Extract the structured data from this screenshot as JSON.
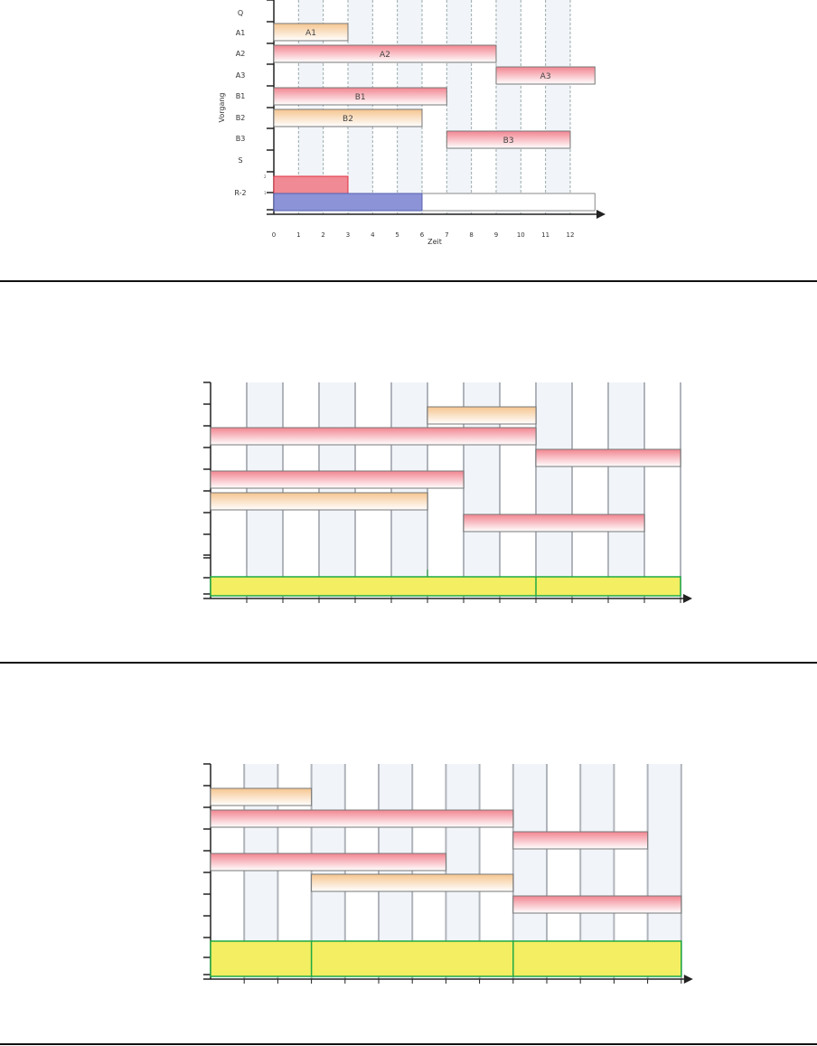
{
  "colors": {
    "orange": "#f5c58f",
    "red": "#f28590",
    "resource_red": "#f08a94",
    "resource_blue": "#8c93d6",
    "yellow": "#f3ee62",
    "green": "#1faa44",
    "band": "#f1f5f9"
  },
  "chart1": {
    "ylabel": "Vorgang",
    "xlabel": "Zeit",
    "row_labels": [
      "Q",
      "A1",
      "A2",
      "A3",
      "B1",
      "B2",
      "B3",
      "S",
      "R-2"
    ],
    "x_ticks": [
      "0",
      "1",
      "2",
      "3",
      "4",
      "5",
      "6",
      "7",
      "8",
      "9",
      "10",
      "11",
      "12"
    ],
    "resource_ticks": [
      "2",
      "1"
    ],
    "tasks": [
      {
        "label": "A1",
        "start": 0,
        "end": 3,
        "color": "orange"
      },
      {
        "label": "A2",
        "start": 0,
        "end": 9,
        "color": "red"
      },
      {
        "label": "A3",
        "start": 9,
        "end": 13,
        "color": "red"
      },
      {
        "label": "B1",
        "start": 0,
        "end": 7,
        "color": "red"
      },
      {
        "label": "B2",
        "start": 0,
        "end": 6,
        "color": "orange"
      },
      {
        "label": "B3",
        "start": 7,
        "end": 12,
        "color": "red"
      }
    ],
    "resource": {
      "capacity_end": 13,
      "usage": [
        {
          "start": 0,
          "end": 3,
          "level": 2
        },
        {
          "start": 0,
          "end": 6,
          "level": 1
        }
      ]
    }
  },
  "chart2": {
    "tasks": [
      {
        "start": 6,
        "end": 9,
        "color": "orange"
      },
      {
        "start": 0,
        "end": 9,
        "color": "red"
      },
      {
        "start": 9,
        "end": 13,
        "color": "red"
      },
      {
        "start": 0,
        "end": 7,
        "color": "red"
      },
      {
        "start": 0,
        "end": 6,
        "color": "orange"
      },
      {
        "start": 7,
        "end": 12,
        "color": "red"
      }
    ],
    "resource": {
      "end": 13,
      "dividers": [
        9
      ]
    }
  },
  "chart3": {
    "tasks": [
      {
        "start": 0,
        "end": 3,
        "color": "orange"
      },
      {
        "start": 0,
        "end": 9,
        "color": "red"
      },
      {
        "start": 9,
        "end": 13,
        "color": "red"
      },
      {
        "start": 0,
        "end": 7,
        "color": "red"
      },
      {
        "start": 3,
        "end": 9,
        "color": "orange"
      },
      {
        "start": 9,
        "end": 14,
        "color": "red"
      }
    ],
    "resource": {
      "end": 14,
      "dividers": [
        3,
        9
      ]
    }
  }
}
